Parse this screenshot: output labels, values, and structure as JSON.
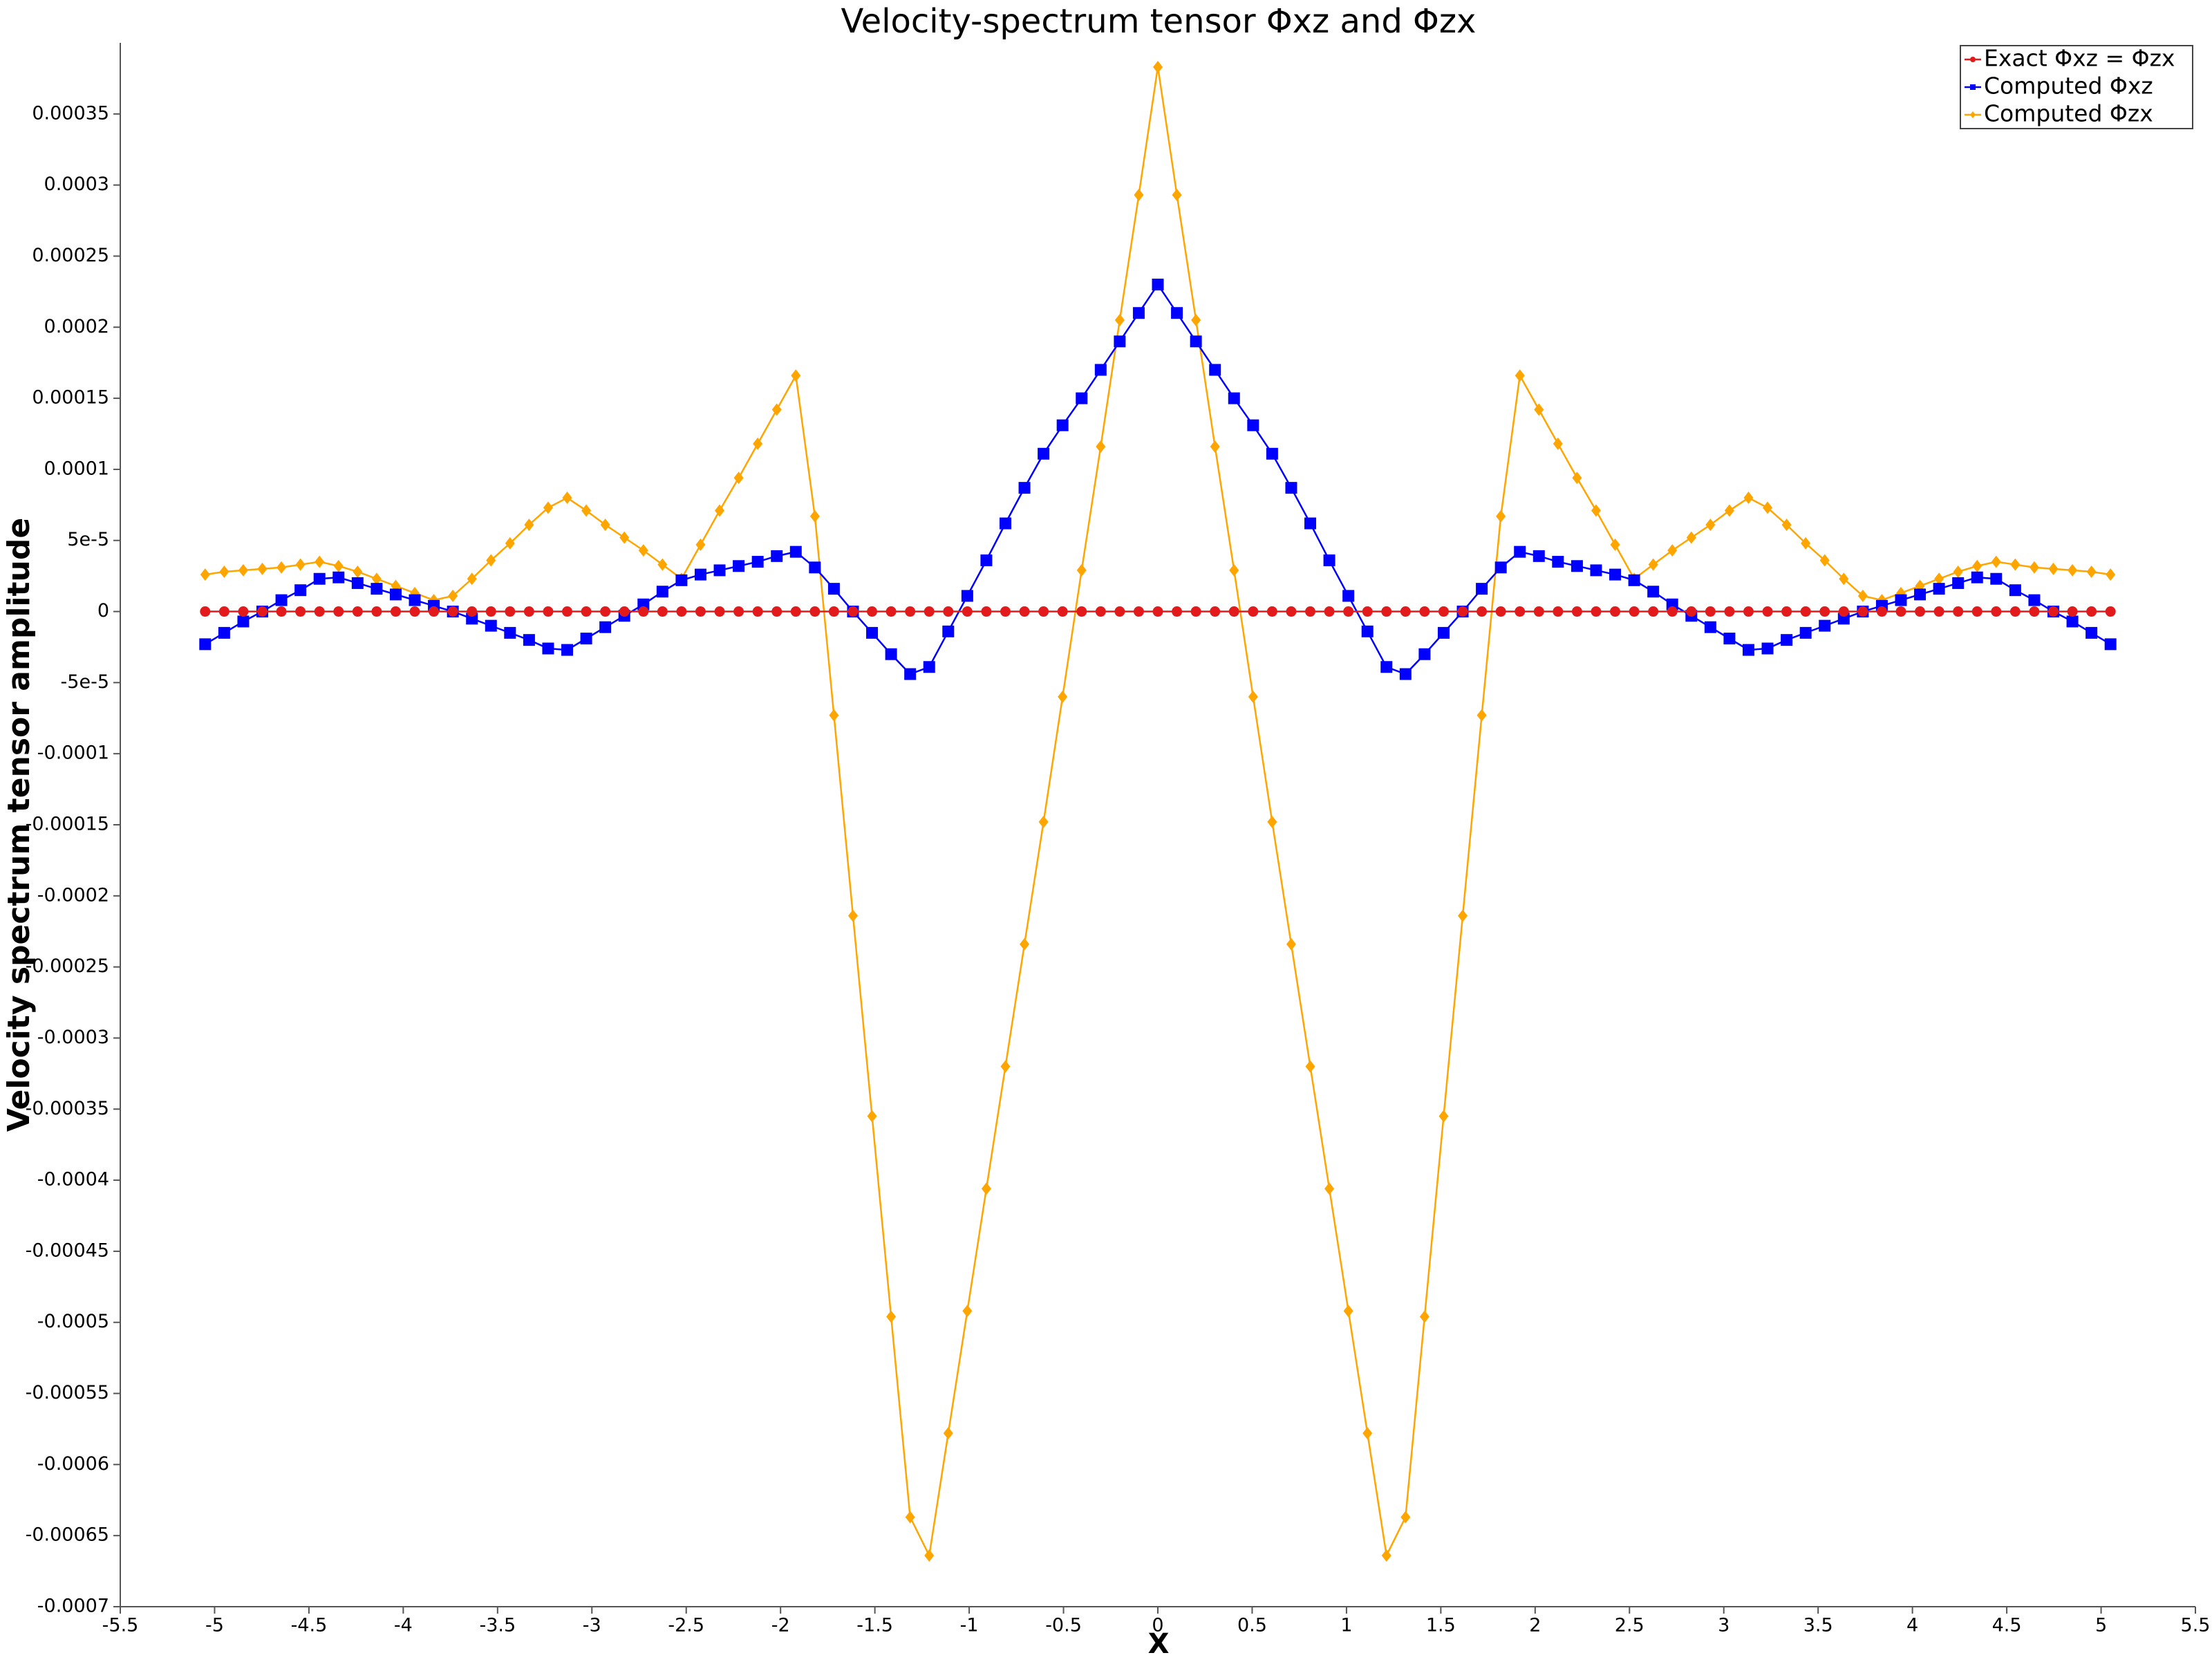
{
  "chart_data": {
    "type": "line",
    "title": "Velocity-spectrum tensor Φxz and Φzx",
    "x_label": "X",
    "y_label": "Velocity spectrum tensor amplitude",
    "legend": "upper right",
    "x": [
      -5.05,
      -4.949,
      -4.848,
      -4.747,
      -4.646,
      -4.545,
      -4.444,
      -4.343,
      -4.242,
      -4.141,
      -4.04,
      -3.939,
      -3.838,
      -3.737,
      -3.636,
      -3.535,
      -3.434,
      -3.333,
      -3.232,
      -3.131,
      -3.03,
      -2.929,
      -2.828,
      -2.727,
      -2.626,
      -2.525,
      -2.424,
      -2.323,
      -2.222,
      -2.121,
      -2.02,
      -1.919,
      -1.818,
      -1.717,
      -1.616,
      -1.515,
      -1.414,
      -1.313,
      -1.212,
      -1.111,
      -1.01,
      -0.909,
      -0.808,
      -0.707,
      -0.606,
      -0.505,
      -0.404,
      -0.303,
      -0.202,
      -0.101,
      0,
      0.101,
      0.202,
      0.303,
      0.404,
      0.505,
      0.606,
      0.707,
      0.808,
      0.909,
      1.01,
      1.111,
      1.212,
      1.313,
      1.414,
      1.515,
      1.616,
      1.717,
      1.818,
      1.919,
      2.02,
      2.121,
      2.222,
      2.323,
      2.424,
      2.525,
      2.626,
      2.727,
      2.828,
      2.929,
      3.03,
      3.131,
      3.232,
      3.333,
      3.434,
      3.535,
      3.636,
      3.737,
      3.838,
      3.939,
      4.04,
      4.141,
      4.242,
      4.343,
      4.444,
      4.545,
      4.646,
      4.747,
      4.848,
      4.949,
      5.05
    ],
    "series": [
      {
        "name": "Exact Φxz = Φzx",
        "color": "#e31a1c",
        "marker": "circle",
        "values": [
          0,
          0,
          0,
          0,
          0,
          0,
          0,
          0,
          0,
          0,
          0,
          0,
          0,
          0,
          0,
          0,
          0,
          0,
          0,
          0,
          0,
          0,
          0,
          0,
          0,
          0,
          0,
          0,
          0,
          0,
          0,
          0,
          0,
          0,
          0,
          0,
          0,
          0,
          0,
          0,
          0,
          0,
          0,
          0,
          0,
          0,
          0,
          0,
          0,
          0,
          0,
          0,
          0,
          0,
          0,
          0,
          0,
          0,
          0,
          0,
          0,
          0,
          0,
          0,
          0,
          0,
          0,
          0,
          0,
          0,
          0,
          0,
          0,
          0,
          0,
          0,
          0,
          0,
          0,
          0,
          0,
          0,
          0,
          0,
          0,
          0,
          0,
          0,
          0,
          0,
          0,
          0,
          0,
          0,
          0,
          0,
          0,
          0,
          0,
          0,
          0
        ]
      },
      {
        "name": "Computed Φxz",
        "color": "#0000ff",
        "marker": "square",
        "values": [
          -2.3e-05,
          -1.5e-05,
          -7e-06,
          0,
          8e-06,
          1.5e-05,
          2.3e-05,
          2.4e-05,
          2e-05,
          1.6e-05,
          1.2e-05,
          8e-06,
          4e-06,
          0,
          -5e-06,
          -1e-05,
          -1.5e-05,
          -2e-05,
          -2.6e-05,
          -2.7e-05,
          -1.9e-05,
          -1.1e-05,
          -3e-06,
          5e-06,
          1.4e-05,
          2.2e-05,
          2.6e-05,
          2.9e-05,
          3.2e-05,
          3.5e-05,
          3.9e-05,
          4.2e-05,
          3.1e-05,
          1.6e-05,
          0,
          -1.5e-05,
          -3e-05,
          -4.4e-05,
          -3.9e-05,
          -1.4e-05,
          1.1e-05,
          3.6e-05,
          6.2e-05,
          8.7e-05,
          0.000111,
          0.000131,
          0.00015,
          0.00017,
          0.00019,
          0.00021,
          0.00023,
          0.00021,
          0.00019,
          0.00017,
          0.00015,
          0.000131,
          0.000111,
          8.7e-05,
          6.2e-05,
          3.6e-05,
          1.1e-05,
          -1.4e-05,
          -3.9e-05,
          -4.4e-05,
          -3e-05,
          -1.5e-05,
          0,
          1.6e-05,
          3.1e-05,
          4.2e-05,
          3.9e-05,
          3.5e-05,
          3.2e-05,
          2.9e-05,
          2.6e-05,
          2.2e-05,
          1.4e-05,
          5e-06,
          -3e-06,
          -1.1e-05,
          -1.9e-05,
          -2.7e-05,
          -2.6e-05,
          -2e-05,
          -1.5e-05,
          -1e-05,
          -5e-06,
          0,
          4e-06,
          8e-06,
          1.2e-05,
          1.6e-05,
          2e-05,
          2.4e-05,
          2.3e-05,
          1.5e-05,
          8e-06,
          0,
          -7e-06,
          -1.5e-05,
          -2.3e-05
        ]
      },
      {
        "name": "Computed Φzx",
        "color": "#ffa500",
        "marker": "diamond",
        "values": [
          2.6e-05,
          2.8e-05,
          2.9e-05,
          3e-05,
          3.1e-05,
          3.3e-05,
          3.5e-05,
          3.2e-05,
          2.8e-05,
          2.3e-05,
          1.8e-05,
          1.3e-05,
          8e-06,
          1.1e-05,
          2.3e-05,
          3.6e-05,
          4.8e-05,
          6.1e-05,
          7.3e-05,
          8e-05,
          7.1e-05,
          6.1e-05,
          5.2e-05,
          4.3e-05,
          3.3e-05,
          2.3e-05,
          4.7e-05,
          7.1e-05,
          9.4e-05,
          0.000118,
          0.000142,
          0.000166,
          6.7e-05,
          -7.3e-05,
          -0.000214,
          -0.000355,
          -0.000496,
          -0.000637,
          -0.000664,
          -0.000578,
          -0.000492,
          -0.000406,
          -0.00032,
          -0.000234,
          -0.000148,
          -6e-05,
          2.9e-05,
          0.000116,
          0.000205,
          0.000293,
          0.000383,
          0.000293,
          0.000205,
          0.000116,
          2.9e-05,
          -6e-05,
          -0.000148,
          -0.000234,
          -0.00032,
          -0.000406,
          -0.000492,
          -0.000578,
          -0.000664,
          -0.000637,
          -0.000496,
          -0.000355,
          -0.000214,
          -7.3e-05,
          6.7e-05,
          0.000166,
          0.000142,
          0.000118,
          9.4e-05,
          7.1e-05,
          4.7e-05,
          2.3e-05,
          3.3e-05,
          4.3e-05,
          5.2e-05,
          6.1e-05,
          7.1e-05,
          8e-05,
          7.3e-05,
          6.1e-05,
          4.8e-05,
          3.6e-05,
          2.3e-05,
          1.1e-05,
          8e-06,
          1.3e-05,
          1.8e-05,
          2.3e-05,
          2.8e-05,
          3.2e-05,
          3.5e-05,
          3.3e-05,
          3.1e-05,
          3e-05,
          2.9e-05,
          2.8e-05,
          2.6e-05
        ]
      }
    ],
    "xlim": [
      -5.5,
      5.5
    ],
    "xticks": [
      -5.5,
      -5,
      -4.5,
      -4,
      -3.5,
      -3,
      -2.5,
      -2,
      -1.5,
      -1,
      -0.5,
      0,
      0.5,
      1,
      1.5,
      2,
      2.5,
      3,
      3.5,
      4,
      4.5,
      5,
      5.5
    ],
    "ylim": [
      -0.0007,
      0.0004
    ],
    "yticks": [
      -0.0007,
      -0.00065,
      -0.0006,
      -0.00055,
      -0.0005,
      -0.00045,
      -0.0004,
      -0.00035,
      -0.0003,
      -0.00025,
      -0.0002,
      -0.00015,
      -0.0001,
      {
        "value": -5e-05,
        "label": "-5e-5"
      },
      0,
      {
        "value": 5e-05,
        "label": "5e-5"
      },
      0.0001,
      0.00015,
      0.0002,
      0.00025,
      0.0003,
      0.00035
    ],
    "grid": false
  }
}
